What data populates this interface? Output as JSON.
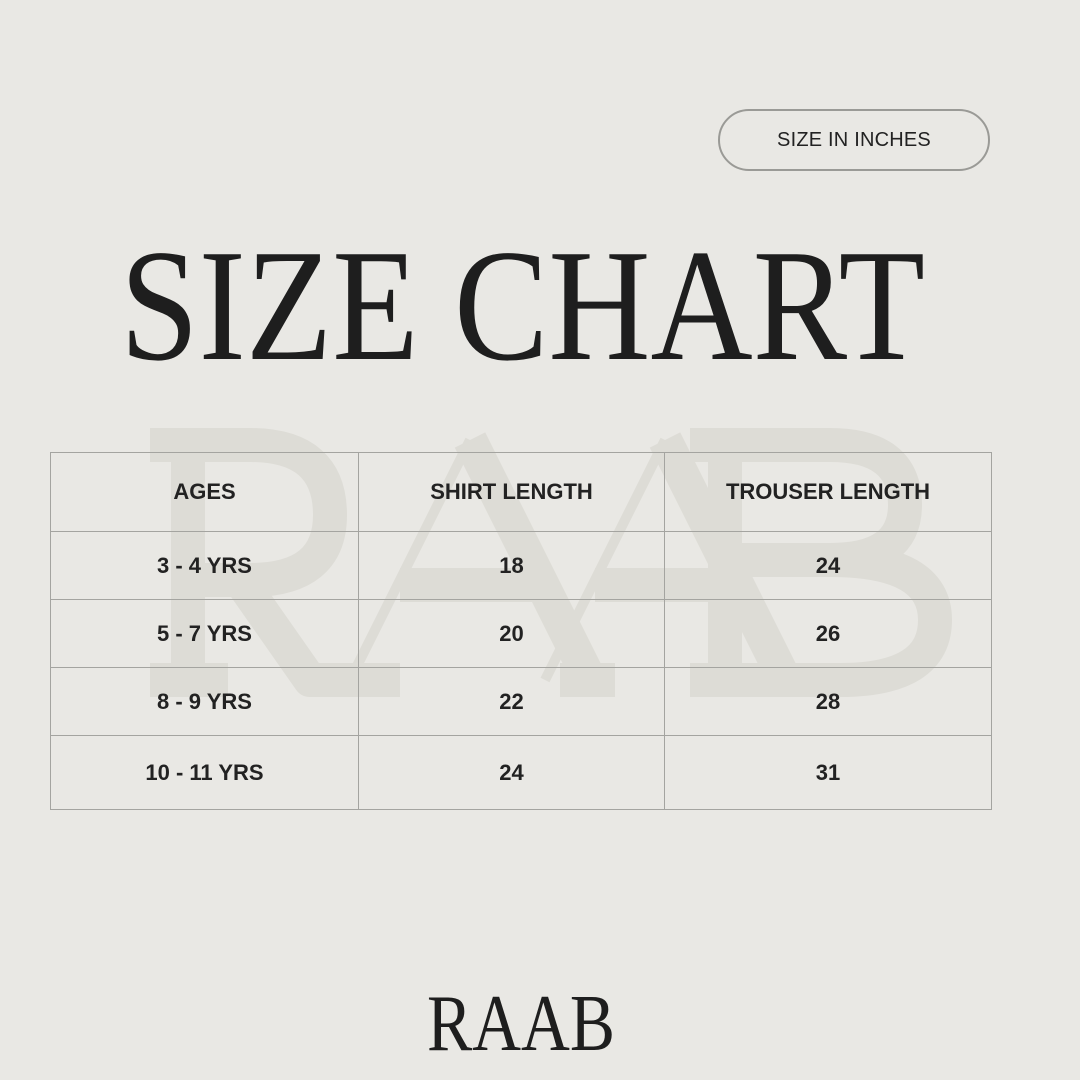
{
  "badge": {
    "label": "SIZE IN INCHES"
  },
  "title": "SIZE CHART",
  "watermark": "RAAB",
  "brand": "RAAB",
  "colors": {
    "background": "#e9e8e4",
    "text": "#1e1e1e",
    "border": "#a4a4a0",
    "watermark": "#dcdcd6"
  },
  "table": {
    "headers": [
      "AGES",
      "SHIRT LENGTH",
      "TROUSER LENGTH"
    ],
    "rows": [
      [
        "3 - 4 YRS",
        "18",
        "24"
      ],
      [
        "5 - 7 YRS",
        "20",
        "26"
      ],
      [
        "8 - 9 YRS",
        "22",
        "28"
      ],
      [
        "10 - 11 YRS",
        "24",
        "31"
      ]
    ]
  }
}
